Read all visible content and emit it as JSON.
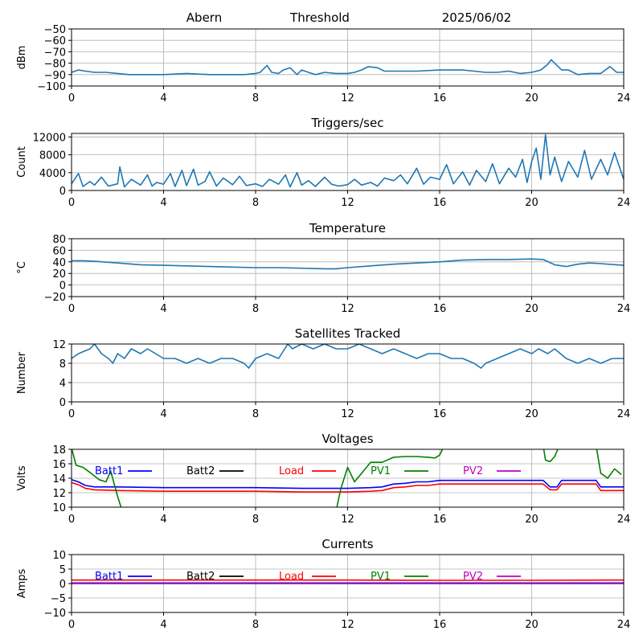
{
  "header": {
    "left": "Abern",
    "middle": "Threshold",
    "right": "2025/06/02"
  },
  "colors": {
    "series_default": "#1f77b4",
    "Batt1": "#0000ff",
    "Batt2": "#000000",
    "Load": "#ff0000",
    "PV1": "#008000",
    "PV2": "#bf00bf",
    "grid": "#b0b0b0"
  },
  "chart_data": [
    {
      "id": "threshold",
      "type": "line",
      "title": "",
      "xlabel": "",
      "ylabel": "dBm",
      "xlim": [
        0,
        24
      ],
      "ylim": [
        -100,
        -50
      ],
      "xticks": [
        0,
        4,
        8,
        12,
        16,
        20,
        24
      ],
      "yticks": [
        -100,
        -90,
        -80,
        -70,
        -60,
        -50
      ],
      "grid": true,
      "series": [
        {
          "color": "#1f77b4",
          "x": [
            0,
            0.3,
            0.6,
            1,
            1.5,
            2,
            2.5,
            3,
            4,
            5,
            6,
            7,
            7.5,
            8,
            8.2,
            8.3,
            8.5,
            8.7,
            9,
            9.2,
            9.5,
            9.8,
            10,
            10.3,
            10.6,
            11,
            11.5,
            12,
            12.3,
            12.6,
            12.9,
            13.3,
            13.6,
            14,
            15,
            16,
            17,
            17.5,
            18,
            18.5,
            19,
            19.5,
            20,
            20.4,
            20.7,
            20.85,
            21,
            21.3,
            21.6,
            22,
            22.5,
            23,
            23.2,
            23.4,
            23.7,
            24
          ],
          "y": [
            -88,
            -86,
            -87,
            -88,
            -88,
            -89,
            -90,
            -90,
            -90,
            -89,
            -90,
            -90,
            -90,
            -89,
            -88,
            -86,
            -82,
            -88,
            -89,
            -86,
            -84,
            -90,
            -86,
            -88,
            -90,
            -88,
            -89,
            -89,
            -88,
            -86,
            -83,
            -84,
            -87,
            -87,
            -87,
            -86,
            -86,
            -87,
            -88,
            -88,
            -87,
            -89,
            -88,
            -86,
            -81,
            -77,
            -80,
            -86,
            -86,
            -90,
            -89,
            -89,
            -86,
            -83,
            -88,
            -88
          ]
        }
      ]
    },
    {
      "id": "triggers",
      "type": "line",
      "title": "Triggers/sec",
      "xlabel": "",
      "ylabel": "Count",
      "xlim": [
        0,
        24
      ],
      "ylim": [
        0,
        12800
      ],
      "xticks": [
        0,
        4,
        8,
        12,
        16,
        20,
        24
      ],
      "yticks": [
        0,
        4000,
        8000,
        12000
      ],
      "grid": true,
      "series": [
        {
          "color": "#1f77b4",
          "x": [
            0,
            0.3,
            0.5,
            0.8,
            1,
            1.3,
            1.6,
            2,
            2.1,
            2.3,
            2.6,
            3,
            3.3,
            3.5,
            3.7,
            4,
            4.3,
            4.5,
            4.8,
            5,
            5.3,
            5.5,
            5.8,
            6,
            6.3,
            6.6,
            7,
            7.3,
            7.6,
            8,
            8.3,
            8.6,
            9,
            9.3,
            9.5,
            9.8,
            10,
            10.3,
            10.6,
            11,
            11.3,
            11.6,
            12,
            12.3,
            12.6,
            13,
            13.3,
            13.6,
            14,
            14.3,
            14.6,
            15,
            15.3,
            15.6,
            16,
            16.3,
            16.6,
            17,
            17.3,
            17.6,
            18,
            18.3,
            18.6,
            19,
            19.3,
            19.6,
            19.8,
            20,
            20.2,
            20.4,
            20.6,
            20.8,
            21,
            21.3,
            21.6,
            22,
            22.3,
            22.6,
            23,
            23.3,
            23.6,
            24
          ],
          "y": [
            1500,
            3800,
            900,
            2000,
            1200,
            3000,
            1000,
            1500,
            5300,
            800,
            2500,
            1200,
            3500,
            1000,
            1800,
            1400,
            3800,
            900,
            4500,
            1100,
            4800,
            1200,
            2000,
            4200,
            1000,
            2800,
            1300,
            3200,
            1100,
            1500,
            900,
            2500,
            1400,
            3500,
            800,
            4000,
            1200,
            2200,
            900,
            3000,
            1400,
            1000,
            1300,
            2500,
            1200,
            1800,
            1000,
            2800,
            2200,
            3500,
            1500,
            5000,
            1400,
            3000,
            2500,
            5800,
            1500,
            4200,
            1200,
            4500,
            2000,
            6000,
            1500,
            5000,
            3000,
            7000,
            1800,
            6500,
            9500,
            2500,
            12500,
            3500,
            7500,
            2000,
            6500,
            3000,
            9000,
            2500,
            7000,
            3500,
            8500,
            2500
          ]
        }
      ]
    },
    {
      "id": "temperature",
      "type": "line",
      "title": "Temperature",
      "xlabel": "",
      "ylabel": "°C",
      "xlim": [
        0,
        24
      ],
      "ylim": [
        -20,
        80
      ],
      "xticks": [
        0,
        4,
        8,
        12,
        16,
        20,
        24
      ],
      "yticks": [
        -20,
        0,
        20,
        40,
        60,
        80
      ],
      "grid": true,
      "series": [
        {
          "color": "#1f77b4",
          "x": [
            0,
            0.5,
            1,
            2,
            3,
            4,
            5,
            6,
            7,
            8,
            9,
            10,
            11,
            11.5,
            12,
            13,
            14,
            15,
            16,
            17,
            18,
            19,
            20,
            20.5,
            21,
            21.5,
            22,
            22.5,
            23,
            24
          ],
          "y": [
            42,
            42,
            41,
            38,
            35,
            34,
            33,
            32,
            31,
            30,
            30,
            29,
            28,
            28,
            30,
            33,
            36,
            38,
            40,
            43,
            44,
            44,
            45,
            44,
            35,
            32,
            36,
            38,
            37,
            34
          ]
        }
      ]
    },
    {
      "id": "satellites",
      "type": "line",
      "title": "Satellites Tracked",
      "xlabel": "",
      "ylabel": "Number",
      "xlim": [
        0,
        24
      ],
      "ylim": [
        0,
        12
      ],
      "xticks": [
        0,
        4,
        8,
        12,
        16,
        20,
        24
      ],
      "yticks": [
        0,
        4,
        8,
        12
      ],
      "grid": true,
      "series": [
        {
          "color": "#1f77b4",
          "x": [
            0,
            0.3,
            0.8,
            1,
            1.3,
            1.6,
            1.8,
            2,
            2.3,
            2.6,
            3,
            3.3,
            4,
            4.5,
            5,
            5.5,
            6,
            6.5,
            7,
            7.5,
            7.7,
            8,
            8.5,
            9,
            9.4,
            9.6,
            10,
            10.5,
            11,
            11.5,
            12,
            12.5,
            13,
            13.5,
            14,
            14.5,
            15,
            15.5,
            16,
            16.5,
            17,
            17.5,
            17.8,
            18,
            18.5,
            19,
            19.5,
            20,
            20.3,
            20.7,
            21,
            21.5,
            22,
            22.5,
            23,
            23.5,
            24
          ],
          "y": [
            9,
            10,
            11,
            12,
            10,
            9,
            8,
            10,
            9,
            11,
            10,
            11,
            9,
            9,
            8,
            9,
            8,
            9,
            9,
            8,
            7,
            9,
            10,
            9,
            12,
            11,
            12,
            11,
            12,
            11,
            11,
            12,
            11,
            10,
            11,
            10,
            9,
            10,
            10,
            9,
            9,
            8,
            7,
            8,
            9,
            10,
            11,
            10,
            11,
            10,
            11,
            9,
            8,
            9,
            8,
            9,
            9
          ]
        }
      ]
    },
    {
      "id": "voltages",
      "type": "line",
      "title": "Voltages",
      "xlabel": "",
      "ylabel": "Volts",
      "xlim": [
        0,
        24
      ],
      "ylim": [
        10,
        18
      ],
      "xticks": [
        0,
        4,
        8,
        12,
        16,
        20,
        24
      ],
      "yticks": [
        10,
        12,
        14,
        16,
        18
      ],
      "grid": true,
      "series": [
        {
          "name": "Batt1",
          "color": "#0000ff",
          "x": [
            0,
            0.3,
            0.6,
            1,
            2,
            4,
            6,
            8,
            10,
            12,
            13,
            13.5,
            14,
            14.5,
            15,
            15.5,
            16,
            17,
            18,
            19,
            20,
            20.5,
            20.8,
            21.1,
            21.3,
            22,
            22.5,
            22.8,
            23,
            24
          ],
          "y": [
            13.8,
            13.5,
            13.0,
            12.8,
            12.8,
            12.7,
            12.7,
            12.7,
            12.6,
            12.6,
            12.7,
            12.8,
            13.2,
            13.3,
            13.5,
            13.5,
            13.7,
            13.7,
            13.7,
            13.7,
            13.7,
            13.7,
            12.8,
            12.8,
            13.7,
            13.7,
            13.7,
            13.7,
            12.8,
            12.8
          ]
        },
        {
          "name": "Batt2",
          "color": "#000000",
          "x": [],
          "y": []
        },
        {
          "name": "Load",
          "color": "#ff0000",
          "x": [
            0,
            0.3,
            0.6,
            1,
            2,
            4,
            6,
            8,
            10,
            12,
            13,
            13.5,
            14,
            14.5,
            15,
            15.5,
            16,
            17,
            18,
            19,
            20,
            20.5,
            20.8,
            21.1,
            21.3,
            22,
            22.5,
            22.8,
            23,
            24
          ],
          "y": [
            13.4,
            13.1,
            12.6,
            12.4,
            12.3,
            12.2,
            12.2,
            12.2,
            12.1,
            12.1,
            12.2,
            12.3,
            12.7,
            12.8,
            13.0,
            13.0,
            13.2,
            13.2,
            13.2,
            13.2,
            13.2,
            13.2,
            12.4,
            12.4,
            13.2,
            13.2,
            13.2,
            13.2,
            12.3,
            12.3
          ]
        },
        {
          "name": "PV1",
          "color": "#008000",
          "x": [
            0,
            0.2,
            0.5,
            0.8,
            1.2,
            1.5,
            1.7,
            2.0,
            2.2,
            11.5,
            11.7,
            12.0,
            12.3,
            13.0,
            13.5,
            14.0,
            14.5,
            15.0,
            15.5,
            15.8,
            16.0,
            16.2,
            20.5,
            20.6,
            20.8,
            21.0,
            21.2,
            22.8,
            23.0,
            23.3,
            23.6,
            23.9
          ],
          "y": [
            18.2,
            15.8,
            15.5,
            14.8,
            13.8,
            13.5,
            15.0,
            11.5,
            9.5,
            9.5,
            12.5,
            15.5,
            13.5,
            16.2,
            16.2,
            16.9,
            17.0,
            17.0,
            16.9,
            16.8,
            17.2,
            18.5,
            18.5,
            16.5,
            16.3,
            17.0,
            18.5,
            18.5,
            14.7,
            14.0,
            15.3,
            14.5
          ]
        },
        {
          "name": "PV2",
          "color": "#bf00bf",
          "x": [],
          "y": []
        }
      ]
    },
    {
      "id": "currents",
      "type": "line",
      "title": "Currents",
      "xlabel": "",
      "ylabel": "Amps",
      "xlim": [
        0,
        24
      ],
      "ylim": [
        -10,
        10
      ],
      "xticks": [
        0,
        4,
        8,
        12,
        16,
        20,
        24
      ],
      "yticks": [
        -10,
        -5,
        0,
        5,
        10
      ],
      "grid": true,
      "series": [
        {
          "name": "Batt1",
          "color": "#0000ff",
          "x": [
            0,
            24
          ],
          "y": [
            0.2,
            0.2
          ]
        },
        {
          "name": "Batt2",
          "color": "#000000",
          "x": [],
          "y": []
        },
        {
          "name": "Load",
          "color": "#ff0000",
          "x": [
            0,
            4,
            8,
            12,
            16,
            20,
            24
          ],
          "y": [
            1.2,
            1.2,
            1.2,
            1.2,
            1.1,
            1.1,
            1.2
          ]
        },
        {
          "name": "PV1",
          "color": "#008000",
          "x": [
            0,
            24
          ],
          "y": [
            0.0,
            0.0
          ]
        },
        {
          "name": "PV2",
          "color": "#bf00bf",
          "x": [
            0,
            24
          ],
          "y": [
            0.0,
            0.0
          ]
        }
      ]
    }
  ]
}
